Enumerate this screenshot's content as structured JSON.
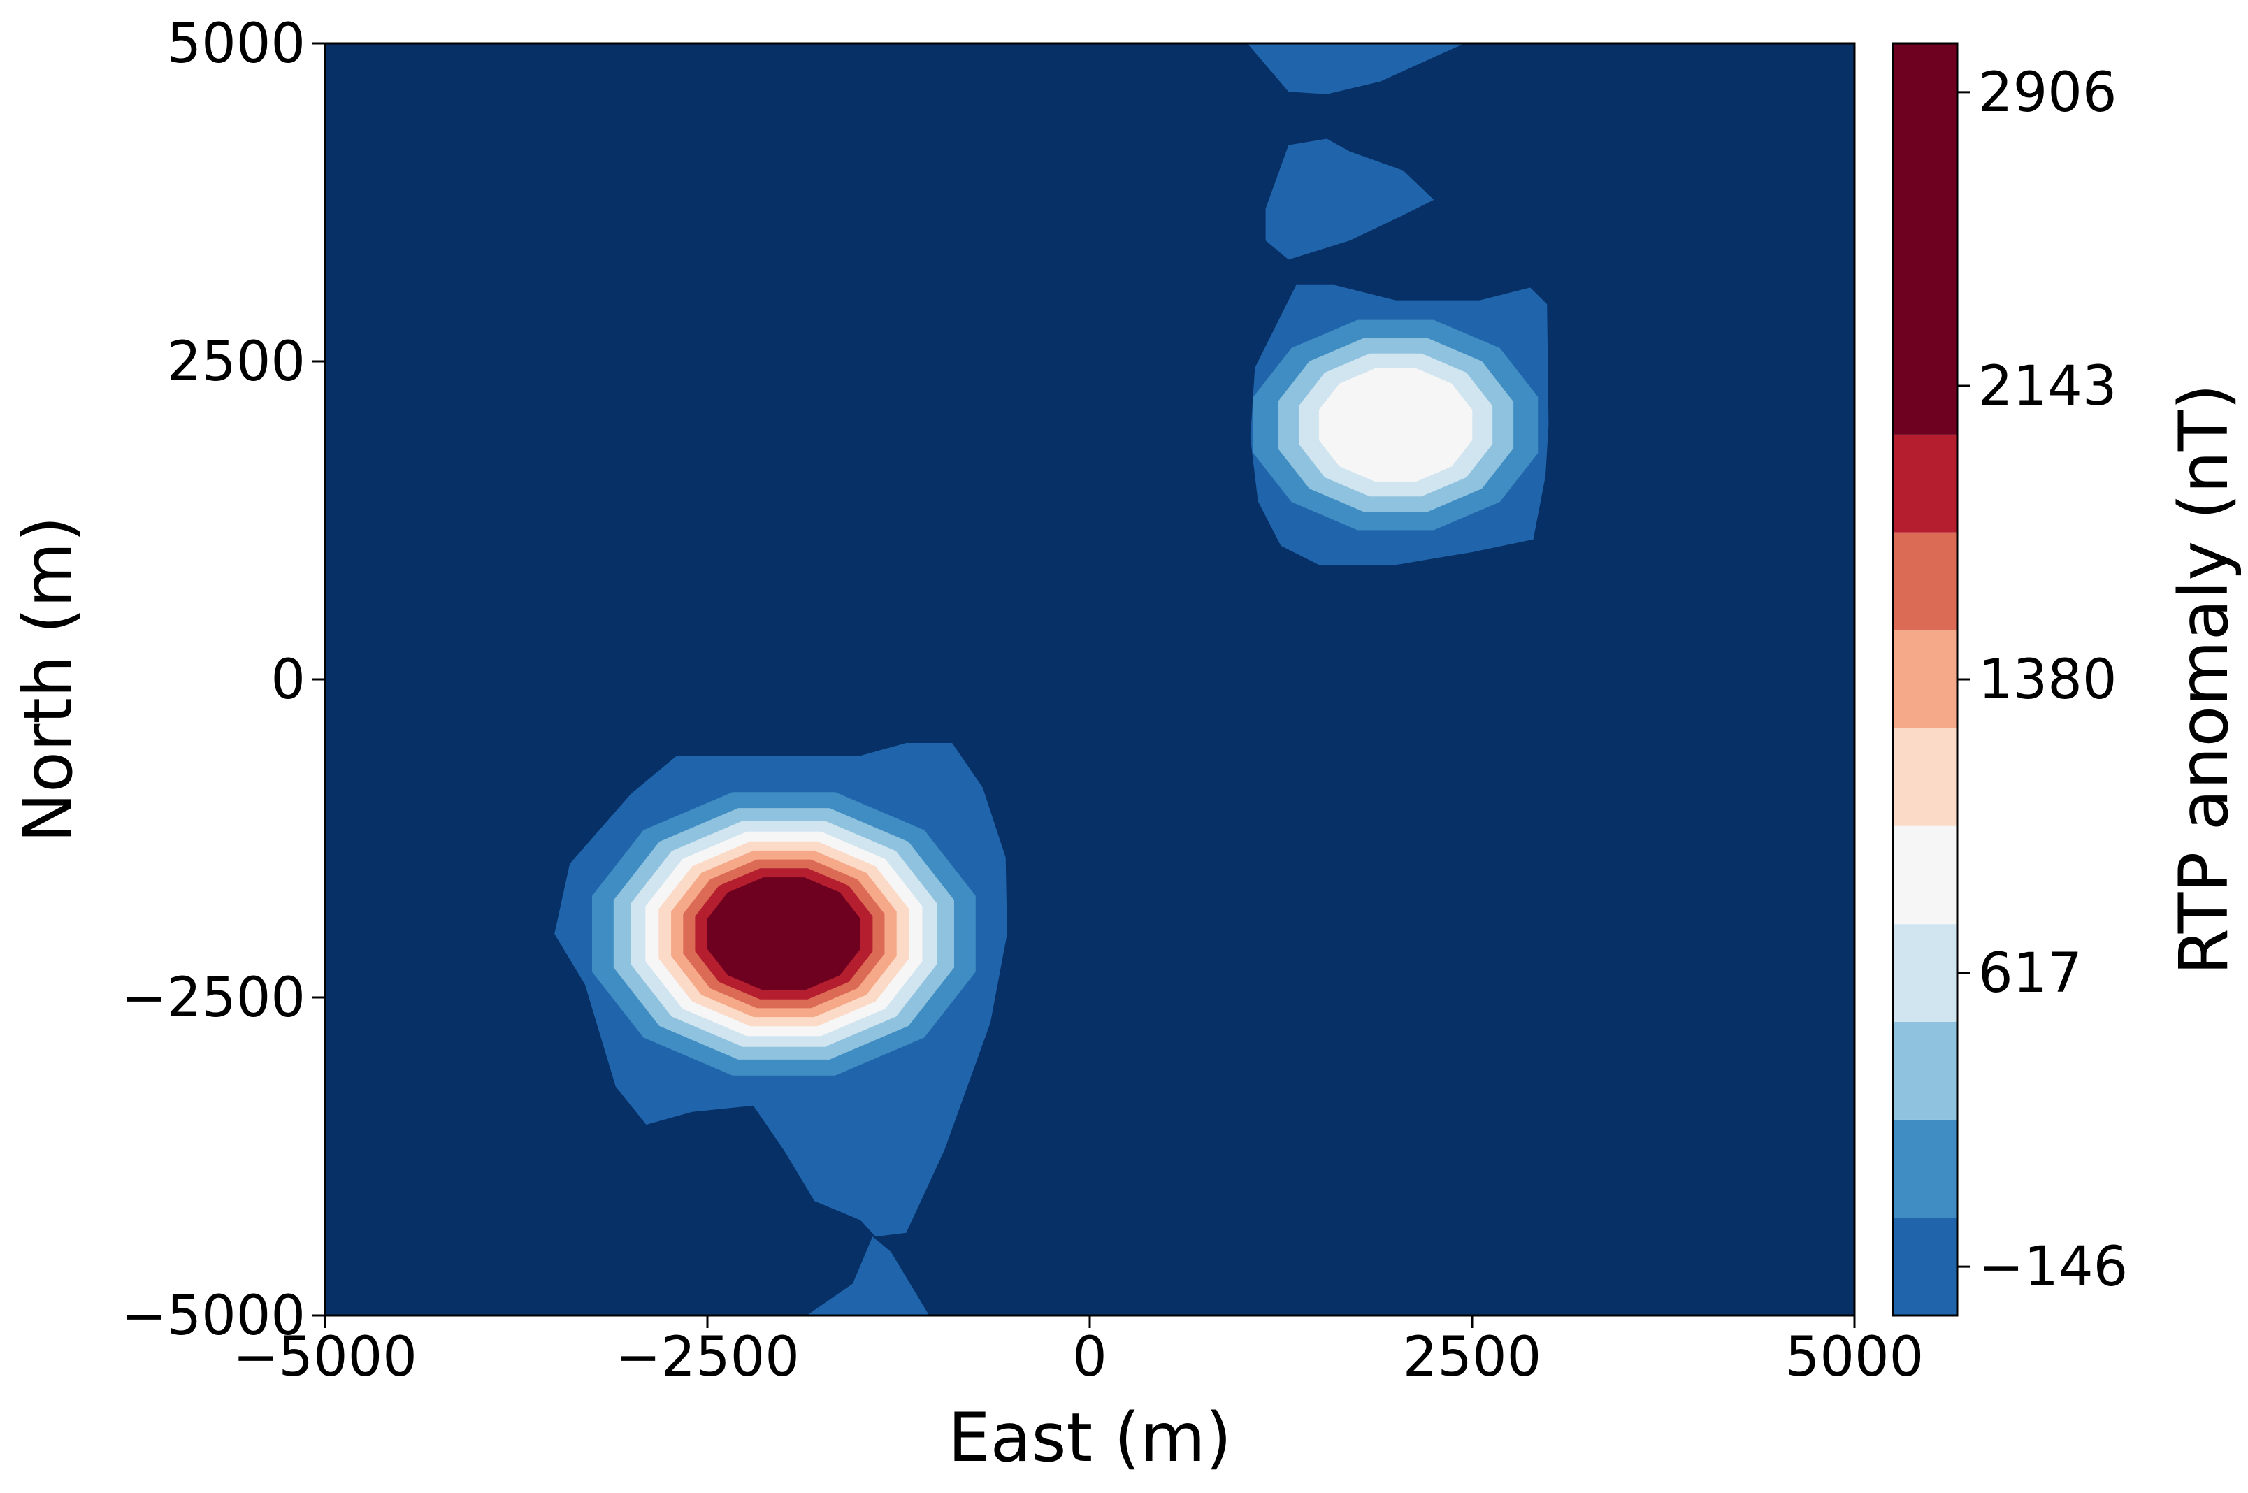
{
  "chart_data": {
    "type": "contour",
    "xlabel": "East (m)",
    "ylabel": "North (m)",
    "xlim": [
      -5000,
      5000
    ],
    "ylim": [
      -5000,
      5000
    ],
    "xticks": [
      -5000,
      -2500,
      0,
      2500,
      5000
    ],
    "yticks": [
      -5000,
      -2500,
      0,
      2500,
      5000
    ],
    "xtick_labels": [
      "−5000",
      "−2500",
      "0",
      "2500",
      "5000"
    ],
    "ytick_labels": [
      "−5000",
      "−2500",
      "0",
      "2500",
      "5000"
    ],
    "colorbar": {
      "label": "RTP anomaly (nT)",
      "ticks": [
        -146,
        617,
        1380,
        2143,
        2906
      ],
      "tick_labels": [
        "−146",
        "617",
        "1380",
        "2143",
        "2906"
      ],
      "levels": [
        -400,
        -146,
        108,
        363,
        617,
        871,
        1126,
        1380,
        1634,
        1889,
        2143,
        2397,
        2652,
        2906,
        3160
      ],
      "colors": [
        "#073066",
        "#2065ab",
        "#3f8dc3",
        "#8fc2de",
        "#d1e5f0",
        "#f6f6f6",
        "#fbdac7",
        "#f5a989",
        "#db6b55",
        "#b51e2f",
        "#6d011f"
      ]
    },
    "anomalies": [
      {
        "x": -2000,
        "y": -2000,
        "peak": 3050
      },
      {
        "x": 2000,
        "y": 2000,
        "peak": 1450
      }
    ],
    "grid": false
  }
}
